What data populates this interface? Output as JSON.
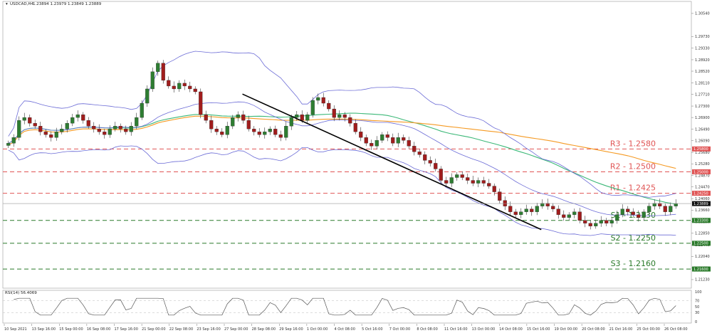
{
  "header": {
    "symbol_label": "USDCAD,H4",
    "ohlc_label": "1.23894 1.23979 1.23849 1.23889"
  },
  "colors": {
    "bull": "#2e7d32",
    "bear": "#a01d1d",
    "bollinger": "#6b6bd6",
    "ma_fast": "#3cb878",
    "ma_slow": "#f59a23",
    "trendline": "#000000",
    "resistance": "#e05555",
    "support": "#2a7a2a",
    "price_line": "#999999",
    "rsi": "#555555"
  },
  "chart_data": [
    {
      "type": "candlestick",
      "y_ticks": [
        "1.30540",
        "1.29730",
        "1.29330",
        "1.28920",
        "1.28520",
        "1.28110",
        "1.27710",
        "1.27300",
        "1.26900",
        "1.26490",
        "1.26090",
        "1.25680",
        "1.25280",
        "1.24870",
        "1.24470",
        "1.24060",
        "1.23660",
        "1.23250",
        "1.22850",
        "1.22440",
        "1.22040",
        "1.21630",
        "1.21230"
      ],
      "y_tick_values": [
        1.3054,
        1.2973,
        1.2933,
        1.2892,
        1.2852,
        1.2811,
        1.2771,
        1.273,
        1.269,
        1.2649,
        1.2609,
        1.2568,
        1.2528,
        1.2487,
        1.2447,
        1.2406,
        1.2366,
        1.2325,
        1.2285,
        1.2244,
        1.2204,
        1.2163,
        1.2123
      ],
      "ylim": [
        1.2093,
        1.3096
      ],
      "x_ticks": [
        "10 Sep 2021",
        "13 Sep 16:00",
        "15 Sep 00:00",
        "16 Sep 08:00",
        "17 Sep 16:00",
        "21 Sep 00:00",
        "22 Sep 08:00",
        "23 Sep 16:00",
        "27 Sep 00:00",
        "28 Sep 08:00",
        "29 Sep 16:00",
        "1 Oct 00:00",
        "4 Oct 08:00",
        "5 Oct 16:00",
        "7 Oct 00:00",
        "8 Oct 08:00",
        "11 Oct 16:00",
        "13 Oct 00:00",
        "14 Oct 08:00",
        "15 Oct 16:00",
        "19 Oct 00:00",
        "20 Oct 08:00",
        "21 Oct 16:00",
        "25 Oct 00:00",
        "26 Oct 08:00"
      ],
      "levels": [
        {
          "label": "R3 - 1.2580",
          "tag": "1.25800",
          "value": 1.258,
          "kind": "resistance"
        },
        {
          "label": "R2 - 1.2500",
          "tag": "1.25000",
          "value": 1.25,
          "kind": "resistance"
        },
        {
          "label": "R1 - 1.2425",
          "tag": "1.24250",
          "value": 1.2425,
          "kind": "resistance"
        },
        {
          "label": "S1 - 1.2330",
          "tag": "1.23300",
          "value": 1.233,
          "kind": "support"
        },
        {
          "label": "S2 - 1.2250",
          "tag": "1.22500",
          "value": 1.225,
          "kind": "support"
        },
        {
          "label": "S3 - 1.2160",
          "tag": "1.21600",
          "value": 1.216,
          "kind": "support"
        }
      ],
      "current_price": 1.23889,
      "current_price_tag": "1.23889",
      "price_path": [
        1.26,
        1.262,
        1.268,
        1.269,
        1.267,
        1.266,
        1.264,
        1.263,
        1.262,
        1.264,
        1.265,
        1.267,
        1.269,
        1.27,
        1.268,
        1.266,
        1.265,
        1.264,
        1.263,
        1.265,
        1.266,
        1.265,
        1.264,
        1.266,
        1.269,
        1.274,
        1.279,
        1.285,
        1.288,
        1.282,
        1.28,
        1.279,
        1.281,
        1.28,
        1.279,
        1.278,
        1.27,
        1.268,
        1.265,
        1.264,
        1.263,
        1.266,
        1.269,
        1.27,
        1.268,
        1.265,
        1.264,
        1.263,
        1.264,
        1.265,
        1.263,
        1.262,
        1.266,
        1.269,
        1.27,
        1.268,
        1.27,
        1.275,
        1.276,
        1.274,
        1.272,
        1.269,
        1.27,
        1.269,
        1.267,
        1.264,
        1.262,
        1.26,
        1.259,
        1.261,
        1.263,
        1.262,
        1.26,
        1.262,
        1.261,
        1.259,
        1.257,
        1.256,
        1.254,
        1.253,
        1.251,
        1.247,
        1.246,
        1.248,
        1.249,
        1.248,
        1.247,
        1.246,
        1.247,
        1.246,
        1.245,
        1.243,
        1.24,
        1.238,
        1.236,
        1.235,
        1.236,
        1.237,
        1.236,
        1.238,
        1.239,
        1.238,
        1.237,
        1.235,
        1.234,
        1.235,
        1.236,
        1.233,
        1.232,
        1.231,
        1.232,
        1.233,
        1.232,
        1.233,
        1.235,
        1.237,
        1.236,
        1.235,
        1.234,
        1.236,
        1.238,
        1.239,
        1.238,
        1.236,
        1.238,
        1.2389
      ],
      "trendline": {
        "from": [
          0.348,
          1.2772
        ],
        "to": [
          0.782,
          1.2298
        ]
      },
      "rsi": {
        "label": "RSI(14) 56.4069",
        "ylim": [
          0,
          100
        ],
        "ticks": [
          "100",
          "70",
          "50",
          "30",
          "0"
        ],
        "tick_values": [
          100,
          70,
          50,
          30,
          0
        ]
      }
    }
  ]
}
